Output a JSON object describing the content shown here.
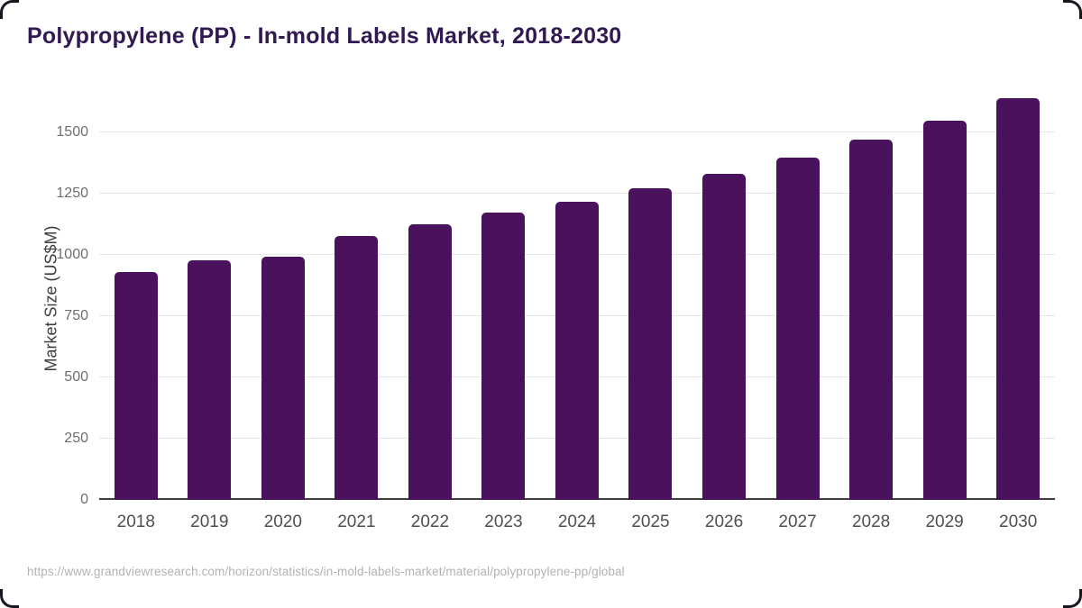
{
  "header": {
    "title": "Polypropylene (PP) - In-mold Labels Market, 2018-2030"
  },
  "footer": {
    "source_url": "https://www.grandviewresearch.com/horizon/statistics/in-mold-labels-market/material/polypropylene-pp/global"
  },
  "colors": {
    "bar": "#4a115c",
    "title": "#311a52",
    "gridline": "#e7e7e7",
    "axis_line": "#3f3f3f",
    "tick_text": "#6e6e6e",
    "xlabel_text": "#4f4f4f",
    "footer_text": "#b2b2b2"
  },
  "chart_data": {
    "type": "bar",
    "title": "Polypropylene (PP) - In-mold Labels Market, 2018-2030",
    "categories": [
      "2018",
      "2019",
      "2020",
      "2021",
      "2022",
      "2023",
      "2024",
      "2025",
      "2026",
      "2027",
      "2028",
      "2029",
      "2030"
    ],
    "values": [
      928,
      977,
      993,
      1076,
      1126,
      1173,
      1217,
      1271,
      1330,
      1397,
      1469,
      1545,
      1638
    ],
    "xlabel": "",
    "ylabel": "Market Size (US$M)",
    "ylim": [
      0,
      1690
    ],
    "yticks": [
      0,
      250,
      500,
      750,
      1000,
      1250,
      1500
    ],
    "grid": true,
    "legend_position": "none",
    "bar_color": "#4a115c"
  }
}
